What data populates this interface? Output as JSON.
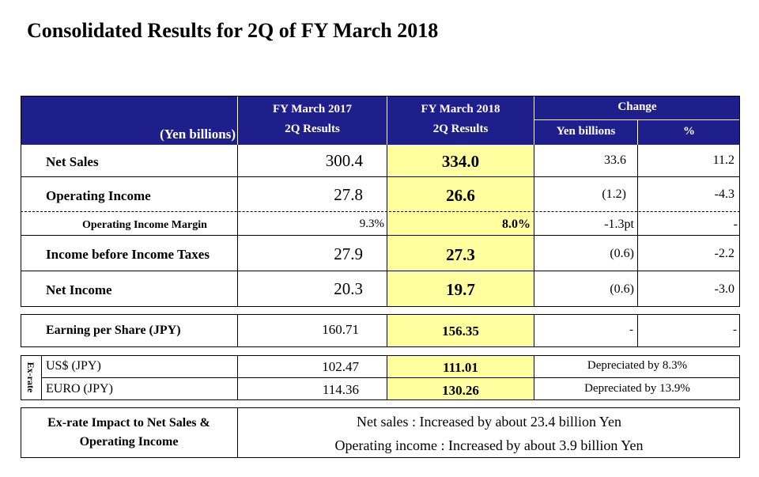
{
  "title": "Consolidated Results for 2Q of FY March 2018",
  "header": {
    "unit": "(Yen billions)",
    "col_prev_line1": "FY March 2017",
    "col_prev_line2": "2Q Results",
    "col_curr_line1": "FY March 2018",
    "col_curr_line2": "2Q Results",
    "change": "Change",
    "change_yen": "Yen billions",
    "change_pct": "%"
  },
  "rows": [
    {
      "label": "Net Sales",
      "prev": "300.4",
      "curr": "334.0",
      "chg_yen": "33.6",
      "chg_pct": "11.2"
    },
    {
      "label": "Operating Income",
      "prev": "27.8",
      "curr": "26.6",
      "chg_yen": "(1.2)",
      "chg_pct": "-4.3"
    },
    {
      "label": "Operating Income Margin",
      "prev": "9.3%",
      "curr": "8.0%",
      "chg_yen": "-1.3pt",
      "chg_pct": "-"
    },
    {
      "label": "Income before Income Taxes",
      "prev": "27.9",
      "curr": "27.3",
      "chg_yen": "(0.6)",
      "chg_pct": "-2.2"
    },
    {
      "label": "Net Income",
      "prev": "20.3",
      "curr": "19.7",
      "chg_yen": "(0.6)",
      "chg_pct": "-3.0"
    }
  ],
  "eps": {
    "label": "Earning per Share (JPY)",
    "prev": "160.71",
    "curr": "156.35",
    "chg_yen": "-",
    "chg_pct": "-"
  },
  "exrate": {
    "side_label": "Ex-rate",
    "usd": {
      "label": "US$ (JPY)",
      "prev": "102.47",
      "curr": "111.01",
      "note": "Depreciated by 8.3%"
    },
    "euro": {
      "label": "EURO (JPY)",
      "prev": "114.36",
      "curr": "130.26",
      "note": "Depreciated by 13.9%"
    }
  },
  "impact": {
    "label_line1": "Ex-rate Impact to Net Sales &",
    "label_line2": "Operating Income",
    "line1": "Net sales : Increased by about 23.4 billion Yen",
    "line2": "Operating income : Increased by about 3.9 billion Yen"
  },
  "colors": {
    "header_bg": "#1f1f8c",
    "highlight": "#ffffa0"
  }
}
